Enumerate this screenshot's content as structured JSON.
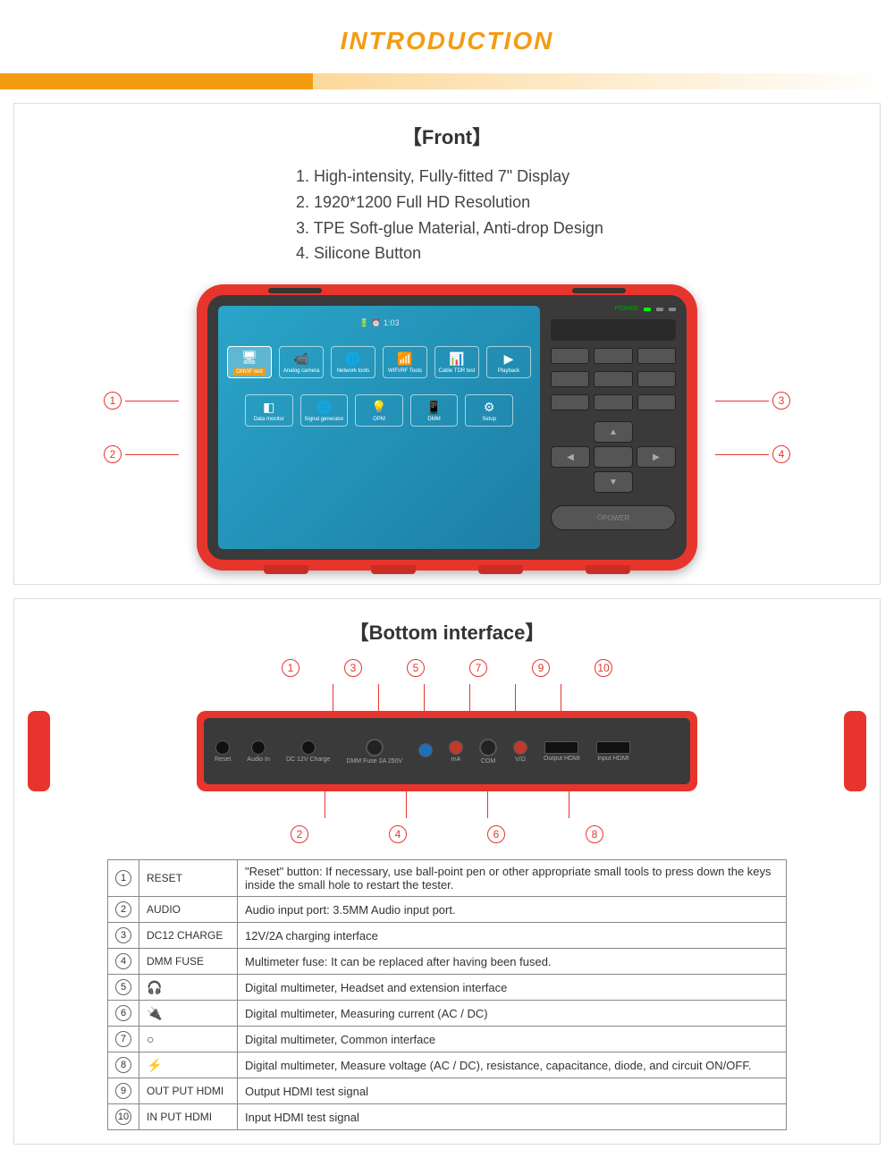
{
  "header": {
    "title": "INTRODUCTION"
  },
  "front": {
    "title": "【Front】",
    "features": [
      "1. High-intensity, Fully-fitted 7\" Display",
      "2. 1920*1200 Full HD Resolution",
      "3. TPE Soft-glue Material, Anti-drop Design",
      "4. Silicone Button"
    ],
    "callouts_left": [
      "1",
      "2"
    ],
    "callouts_right": [
      "3",
      "4"
    ],
    "status_time": "1:03",
    "led_label": "POWER",
    "power_label": "POWER",
    "apps_row1": [
      {
        "glyph": "🖥",
        "label": "ONVIF test",
        "sel": true
      },
      {
        "glyph": "📹",
        "label": "Analog camera"
      },
      {
        "glyph": "🌐",
        "label": "Network tools"
      },
      {
        "glyph": "📶",
        "label": "WIFI/RF Tools"
      },
      {
        "glyph": "📊",
        "label": "Cable TDR test"
      },
      {
        "glyph": "▶",
        "label": "Playback"
      }
    ],
    "apps_row2": [
      {
        "glyph": "◧",
        "label": "Data monitor"
      },
      {
        "glyph": "🌐",
        "label": "Signal generator"
      },
      {
        "glyph": "💡",
        "label": "OPM"
      },
      {
        "glyph": "📱",
        "label": "DMM"
      },
      {
        "glyph": "⚙",
        "label": "Setup"
      }
    ]
  },
  "bottom": {
    "title": "【Bottom interface】",
    "top_nums": [
      "1",
      "3",
      "5",
      "7",
      "9",
      "10"
    ],
    "bot_nums": [
      "2",
      "4",
      "6",
      "8"
    ],
    "ports": [
      {
        "label": "Reset",
        "type": "hole"
      },
      {
        "label": "Audio In",
        "type": "hole"
      },
      {
        "label": "DC 12V Charge",
        "type": "hole"
      },
      {
        "label": "DMM Fuse 2A 250V",
        "type": "knob"
      },
      {
        "label": "",
        "type": "jack-b"
      },
      {
        "label": "mA",
        "type": "jack-r"
      },
      {
        "label": "COM",
        "type": "knob"
      },
      {
        "label": "V/Ω",
        "type": "jack-r"
      },
      {
        "label": "Output HDMI",
        "type": "hdmi"
      },
      {
        "label": "Input HDMI",
        "type": "hdmi"
      }
    ]
  },
  "table": {
    "rows": [
      {
        "n": "1",
        "name": "RESET",
        "desc": "\"Reset\" button: If necessary, use ball-point pen or other appropriate small tools to press down the keys inside the small hole to restart the tester."
      },
      {
        "n": "2",
        "name": "AUDIO",
        "desc": "Audio input port: 3.5MM Audio input port."
      },
      {
        "n": "3",
        "name": "DC12 CHARGE",
        "desc": "12V/2A charging interface"
      },
      {
        "n": "4",
        "name": "DMM FUSE",
        "desc": "Multimeter fuse: It can be replaced after having been fused."
      },
      {
        "n": "5",
        "name": "icon:🎧",
        "desc": "Digital multimeter, Headset and extension interface"
      },
      {
        "n": "6",
        "name": "icon:🔌",
        "desc": "Digital multimeter, Measuring current (AC / DC)"
      },
      {
        "n": "7",
        "name": "icon:○",
        "desc": "Digital multimeter, Common interface"
      },
      {
        "n": "8",
        "name": "icon:⚡",
        "desc": "Digital multimeter, Measure voltage (AC / DC), resistance, capacitance, diode, and circuit ON/OFF."
      },
      {
        "n": "9",
        "name": "OUT PUT HDMI",
        "desc": "Output HDMI test signal"
      },
      {
        "n": "10",
        "name": "IN PUT HDMI",
        "desc": "Input HDMI test signal"
      }
    ]
  },
  "colors": {
    "accent_orange": "#f39c12",
    "device_red": "#e7352d",
    "screen_grad_a": "#2aa5c9",
    "screen_grad_b": "#1d7ea5",
    "body_grey": "#3a3a3a"
  }
}
